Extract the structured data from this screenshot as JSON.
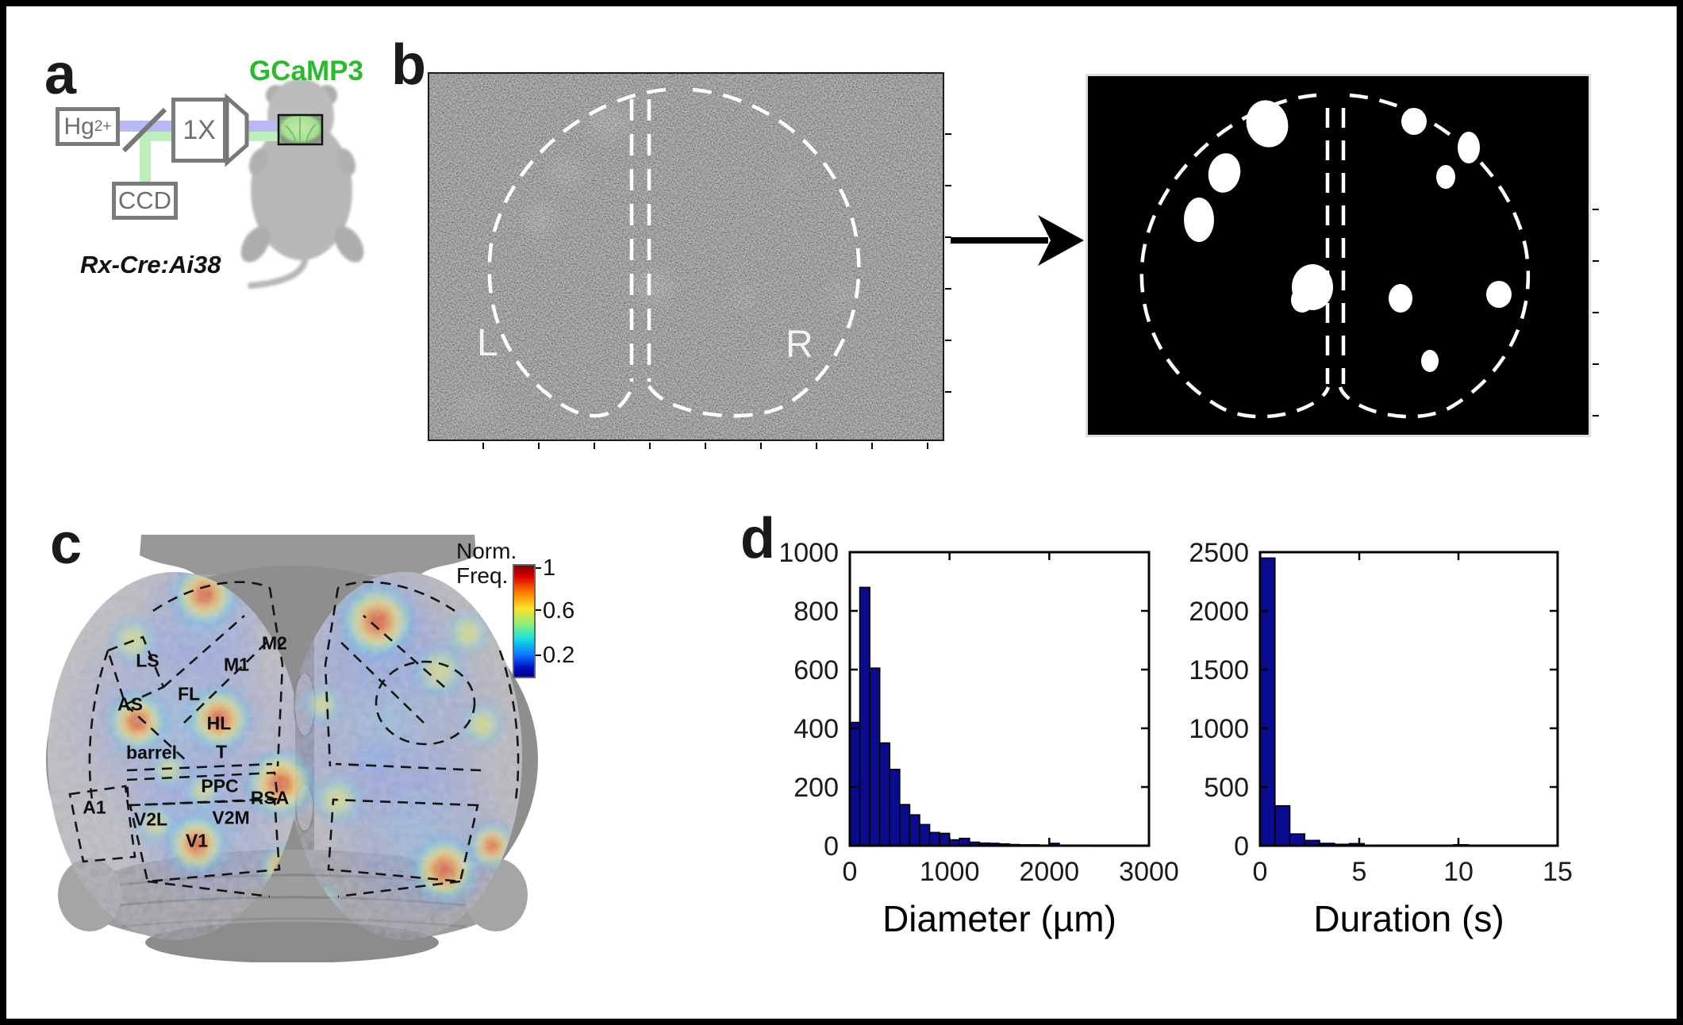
{
  "panel_labels": {
    "a": "a",
    "b": "b",
    "c": "c",
    "d": "d"
  },
  "panel_a": {
    "lamp_label_base": "Hg",
    "lamp_label_sup": "2+",
    "objective_label": "1X",
    "camera_label": "CCD",
    "fluorophore_label": "GCaMP3",
    "fluorophore_color": "#2db92d",
    "mouse_genotype": "Rx-Cre:Ai38",
    "excitation_beam_color": "#b9b9f4",
    "emission_beam_color": "#bdeebd"
  },
  "panel_b": {
    "hemisphere_left": "L",
    "hemisphere_right": "R"
  },
  "panel_c": {
    "colorbar_title": [
      "Norm.",
      "Freq."
    ],
    "colorbar_tick_labels": [
      "1",
      "0.6",
      "0.2"
    ],
    "regions": [
      "LS",
      "M1",
      "M2",
      "FL",
      "AS",
      "HL",
      "T",
      "barrel",
      "PPC",
      "RSA",
      "A1",
      "V2L",
      "V2M",
      "V1"
    ]
  },
  "chart_data": [
    {
      "type": "bar",
      "title": "",
      "xlabel": "Diameter (µm)",
      "ylabel": "",
      "bin_start": 0,
      "bin_width": 100,
      "values": [
        420,
        880,
        605,
        350,
        260,
        140,
        105,
        72,
        45,
        42,
        20,
        25,
        12,
        9,
        8,
        6,
        4,
        3,
        3,
        2,
        8,
        2,
        2,
        2
      ],
      "x_ticks": [
        0,
        1000,
        2000,
        3000
      ],
      "y_ticks": [
        0,
        200,
        400,
        600,
        800,
        1000
      ],
      "xlim": [
        0,
        3000
      ],
      "ylim": [
        0,
        1000
      ],
      "grid": false,
      "legend": "none",
      "bar_color": "#0b0b90"
    },
    {
      "type": "bar",
      "title": "",
      "xlabel": "Duration (s)",
      "ylabel": "",
      "bin_start": 0,
      "bin_width": 0.75,
      "values": [
        2450,
        340,
        100,
        45,
        20,
        12,
        18,
        4,
        2,
        2,
        2,
        2,
        2,
        8,
        2
      ],
      "x_ticks": [
        0,
        5,
        10,
        15
      ],
      "y_ticks": [
        0,
        500,
        1000,
        1500,
        2000,
        2500
      ],
      "xlim": [
        0,
        15
      ],
      "ylim": [
        0,
        2500
      ],
      "grid": false,
      "legend": "none",
      "bar_color": "#0b0b90"
    }
  ]
}
